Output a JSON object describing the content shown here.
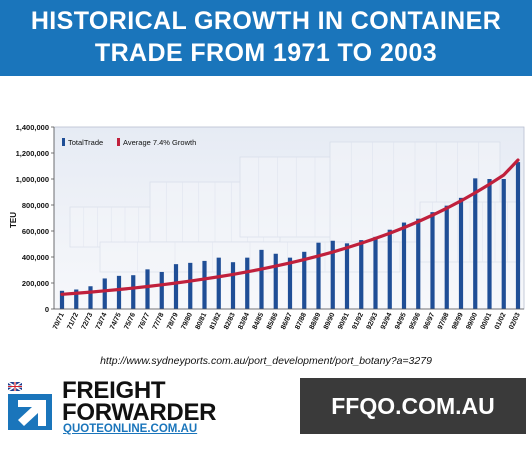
{
  "header": {
    "title_line1": "HISTORICAL GROWTH IN CONTAINER",
    "title_line2": "TRADE FROM 1971 TO 2003",
    "background": "#1a75bb"
  },
  "chart_data": {
    "type": "bar",
    "ylabel": "TEU",
    "xlabel": "",
    "ylim": [
      0,
      1400000
    ],
    "yticks": [
      "0",
      "200,000",
      "400,000",
      "600,000",
      "800,000",
      "1,000,000",
      "1,200,000",
      "1,400,000"
    ],
    "grid": false,
    "legend_position": "top-left",
    "categories": [
      "70/71",
      "71/72",
      "72/73",
      "73/74",
      "74/75",
      "75/76",
      "76/77",
      "77/78",
      "78/79",
      "79/80",
      "80/81",
      "81/82",
      "82/83",
      "83/84",
      "84/85",
      "85/86",
      "86/87",
      "87/88",
      "88/89",
      "89/90",
      "90/91",
      "91/92",
      "92/93",
      "93/94",
      "94/95",
      "95/96",
      "96/97",
      "97/98",
      "98/99",
      "99/00",
      "00/01",
      "01/02",
      "02/03"
    ],
    "series": [
      {
        "name": "TotalTrade",
        "kind": "bar",
        "color": "#1f4e96",
        "values": [
          140000,
          150000,
          175000,
          235000,
          255000,
          260000,
          305000,
          285000,
          345000,
          355000,
          370000,
          395000,
          360000,
          395000,
          455000,
          425000,
          395000,
          440000,
          510000,
          525000,
          505000,
          530000,
          555000,
          610000,
          665000,
          695000,
          745000,
          795000,
          855000,
          1005000,
          1000000,
          1000000,
          1130000
        ]
      },
      {
        "name": "Average 7.4% Growth",
        "kind": "line",
        "color": "#c0203c",
        "values": [
          113000,
          121000,
          130000,
          140000,
          150000,
          161000,
          173000,
          186000,
          200000,
          215000,
          231000,
          248000,
          266000,
          286000,
          307000,
          330000,
          354000,
          380000,
          408000,
          438000,
          471000,
          506000,
          543000,
          583000,
          626000,
          672000,
          722000,
          775000,
          832000,
          894000,
          960000,
          1031000,
          1146000
        ]
      }
    ]
  },
  "source_url": "http://www.sydneyports.com.au/port_development/port_botany?a=3279",
  "footer": {
    "logo_line1": "FREIGHT",
    "logo_line2": "FORWARDER",
    "logo_line3": "QUOTEONLINE.COM.AU",
    "site_label": "FFQO.COM.AU",
    "site_bg": "#3a3a3a"
  }
}
